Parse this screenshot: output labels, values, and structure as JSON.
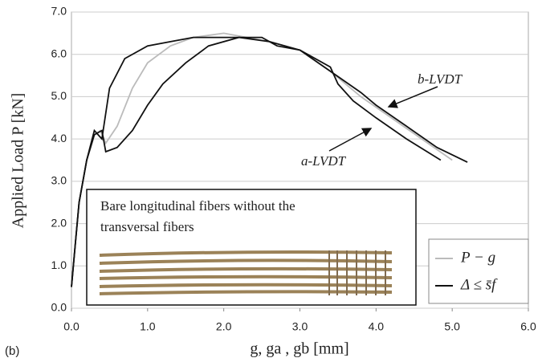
{
  "chart_data": {
    "type": "line",
    "xlabel": "g, ga , gb [mm]",
    "ylabel": "Applied Load P [kN]",
    "panel_label": "(b)",
    "inset_text": [
      "Bare longitudinal fibers without the",
      "transversal fibers"
    ],
    "annotations": [
      "a-LVDT",
      "b-LVDT"
    ],
    "xlim": [
      0,
      6
    ],
    "ylim": [
      0,
      7
    ],
    "xticks": [
      {
        "value": 0,
        "label": "0.0"
      },
      {
        "value": 1,
        "label": "1.0"
      },
      {
        "value": 2,
        "label": "2.0"
      },
      {
        "value": 3,
        "label": "3.0"
      },
      {
        "value": 4,
        "label": "4.0"
      },
      {
        "value": 5,
        "label": "5.0"
      },
      {
        "value": 6,
        "label": "6.0"
      }
    ],
    "yticks": [
      {
        "value": 0,
        "label": "0.0"
      },
      {
        "value": 1,
        "label": "1.0"
      },
      {
        "value": 2,
        "label": "2.0"
      },
      {
        "value": 3,
        "label": "3.0"
      },
      {
        "value": 4,
        "label": "4.0"
      },
      {
        "value": 5,
        "label": "5.0"
      },
      {
        "value": 6,
        "label": "6.0"
      },
      {
        "value": 7,
        "label": "7.0"
      }
    ],
    "grid": true,
    "series": [
      {
        "name": "P − g",
        "color": "#bbbbbb",
        "x": [
          0,
          0.05,
          0.1,
          0.2,
          0.3,
          0.38,
          0.45,
          0.6,
          0.8,
          1.0,
          1.3,
          1.6,
          2.0,
          2.3,
          2.6,
          3.0,
          3.4,
          3.8,
          4.2,
          4.6,
          5.0
        ],
        "values": [
          0.5,
          1.5,
          2.5,
          3.5,
          4.1,
          4.2,
          3.9,
          4.3,
          5.2,
          5.8,
          6.2,
          6.4,
          6.5,
          6.4,
          6.3,
          6.1,
          5.6,
          5.0,
          4.5,
          4.0,
          3.5
        ]
      },
      {
        "name": "Δ ≤ s̄f",
        "color": "#111111",
        "x": [
          0,
          0.05,
          0.1,
          0.2,
          0.3,
          0.4,
          0.5,
          0.7,
          1.0,
          1.3,
          1.6,
          2.0,
          2.5,
          2.7,
          3.0,
          3.4,
          3.5,
          3.7,
          4.0,
          4.4,
          4.85
        ],
        "values": [
          0.5,
          1.5,
          2.5,
          3.5,
          4.2,
          4.0,
          5.2,
          5.9,
          6.2,
          6.3,
          6.4,
          6.4,
          6.4,
          6.2,
          6.1,
          5.7,
          5.3,
          4.9,
          4.5,
          4.0,
          3.5
        ]
      },
      {
        "color": "#111111",
        "x": [
          0,
          0.05,
          0.1,
          0.2,
          0.3,
          0.4,
          0.45,
          0.6,
          0.8,
          1.0,
          1.2,
          1.5,
          1.8,
          2.2,
          2.6,
          3.0,
          3.4,
          3.8,
          4.0,
          4.4,
          4.8,
          5.2
        ],
        "values": [
          0.5,
          1.5,
          2.5,
          3.5,
          4.1,
          4.2,
          3.7,
          3.8,
          4.2,
          4.8,
          5.3,
          5.8,
          6.2,
          6.4,
          6.3,
          6.1,
          5.6,
          5.1,
          4.8,
          4.3,
          3.8,
          3.45
        ]
      }
    ]
  }
}
